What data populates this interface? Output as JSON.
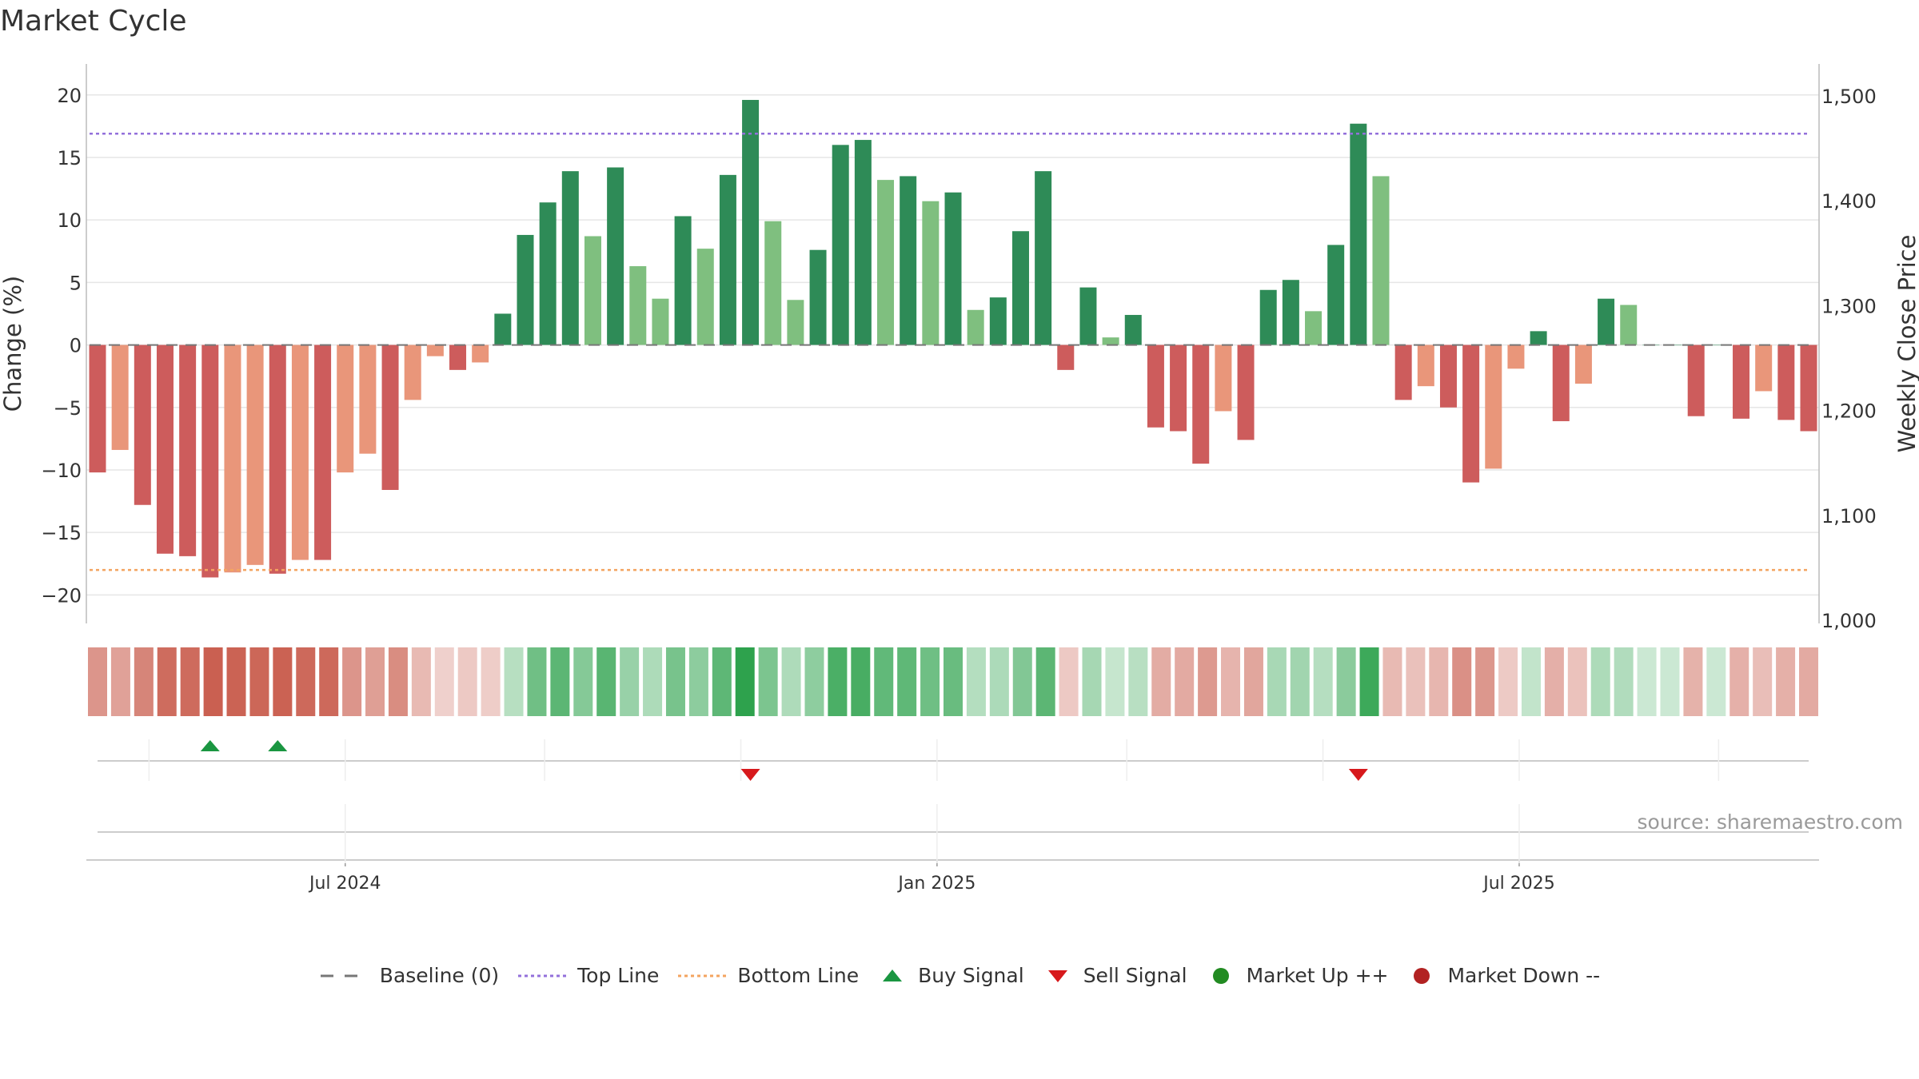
{
  "title": "Market Cycle",
  "source": "source: sharemaestro.com",
  "legend": [
    {
      "key": "baseline",
      "label": "Baseline (0)"
    },
    {
      "key": "top",
      "label": "Top Line"
    },
    {
      "key": "bottom",
      "label": "Bottom Line"
    },
    {
      "key": "buy",
      "label": "Buy Signal"
    },
    {
      "key": "sell",
      "label": "Sell Signal"
    },
    {
      "key": "up",
      "label": "Market Up ++"
    },
    {
      "key": "down",
      "label": "Market Down --"
    }
  ],
  "colors": {
    "pos_strong": "#2e8b57",
    "pos_weak": "#7fbf7f",
    "neg_strong": "#cd5c5c",
    "neg_weak": "#e9967a",
    "top_line": "#9370db",
    "bottom_line": "#f4a460",
    "baseline": "#777777",
    "buy": "#1a9641",
    "sell": "#d7191c",
    "market_up": "#228b22",
    "market_down": "#b22222",
    "grid": "#e6e6e6",
    "axis_text": "#333333"
  },
  "chart_data": {
    "type": "bar",
    "ylabel": "Change (%)",
    "y2label": "Weekly Close Price",
    "ylim": [
      -21,
      21.2
    ],
    "yticks": [
      20,
      15,
      10,
      5,
      0,
      -5,
      -10,
      -15,
      -20
    ],
    "ytick_labels": [
      "20",
      "15",
      "10",
      "5",
      "0",
      "−5",
      "−10",
      "−15",
      "−20"
    ],
    "y2lim": [
      1000,
      1500
    ],
    "y2ticks": [
      1500,
      1400,
      1300,
      1200,
      1100,
      1000
    ],
    "y2tick_labels": [
      "1,500",
      "1,400",
      "1,300",
      "1,200",
      "1,100",
      "1,000"
    ],
    "top_line": 16.9,
    "bottom_line": -18.0,
    "baseline": 0,
    "x_start": "2024-04-15",
    "x_step_days": 7,
    "xticks": [
      {
        "date": "2024-07-01",
        "label": "Jul 2024"
      },
      {
        "date": "2025-01-01",
        "label": "Jan 2025"
      },
      {
        "date": "2025-07-01",
        "label": "Jul 2025"
      }
    ],
    "values": [
      -10.2,
      -8.4,
      -12.8,
      -16.7,
      -16.9,
      -18.6,
      -18.2,
      -17.6,
      -18.3,
      -17.2,
      -17.2,
      -10.2,
      -8.7,
      -11.6,
      -4.4,
      -0.9,
      -2.0,
      -1.4,
      2.5,
      8.8,
      11.4,
      13.9,
      8.7,
      14.2,
      6.3,
      3.7,
      10.3,
      7.7,
      13.6,
      19.6,
      9.9,
      3.6,
      7.6,
      16.0,
      16.4,
      13.2,
      13.5,
      11.5,
      12.2,
      2.8,
      3.8,
      9.1,
      13.9,
      -2.0,
      4.6,
      0.6,
      2.4,
      -6.6,
      -6.9,
      -9.5,
      -5.3,
      -7.6,
      4.4,
      5.2,
      2.7,
      8.0,
      17.7,
      13.5,
      -4.4,
      -3.3,
      -5.0,
      -11.0,
      -9.9,
      -1.9,
      1.1,
      -6.1,
      -3.1,
      3.7,
      3.2,
      0.0,
      0.0,
      -5.7,
      0.0,
      -5.9,
      -3.7,
      -6.0,
      -6.9
    ],
    "strength": [
      "strong",
      "weak",
      "strong",
      "strong",
      "strong",
      "strong",
      "weak",
      "weak",
      "strong",
      "weak",
      "strong",
      "weak",
      "weak",
      "strong",
      "weak",
      "weak",
      "strong",
      "weak",
      "strong",
      "strong",
      "strong",
      "strong",
      "weak",
      "strong",
      "weak",
      "weak",
      "strong",
      "weak",
      "strong",
      "strong",
      "weak",
      "weak",
      "strong",
      "strong",
      "strong",
      "weak",
      "strong",
      "weak",
      "strong",
      "weak",
      "strong",
      "strong",
      "strong",
      "strong",
      "strong",
      "weak",
      "strong",
      "strong",
      "strong",
      "strong",
      "weak",
      "strong",
      "strong",
      "strong",
      "weak",
      "strong",
      "strong",
      "weak",
      "strong",
      "weak",
      "strong",
      "strong",
      "weak",
      "weak",
      "strong",
      "strong",
      "weak",
      "strong",
      "weak",
      "strong",
      "strong",
      "strong",
      "strong",
      "strong",
      "weak",
      "strong",
      "strong"
    ],
    "heat_cells": 75,
    "buy_signals": [
      5,
      8
    ],
    "sell_signals": [
      29,
      56
    ]
  }
}
